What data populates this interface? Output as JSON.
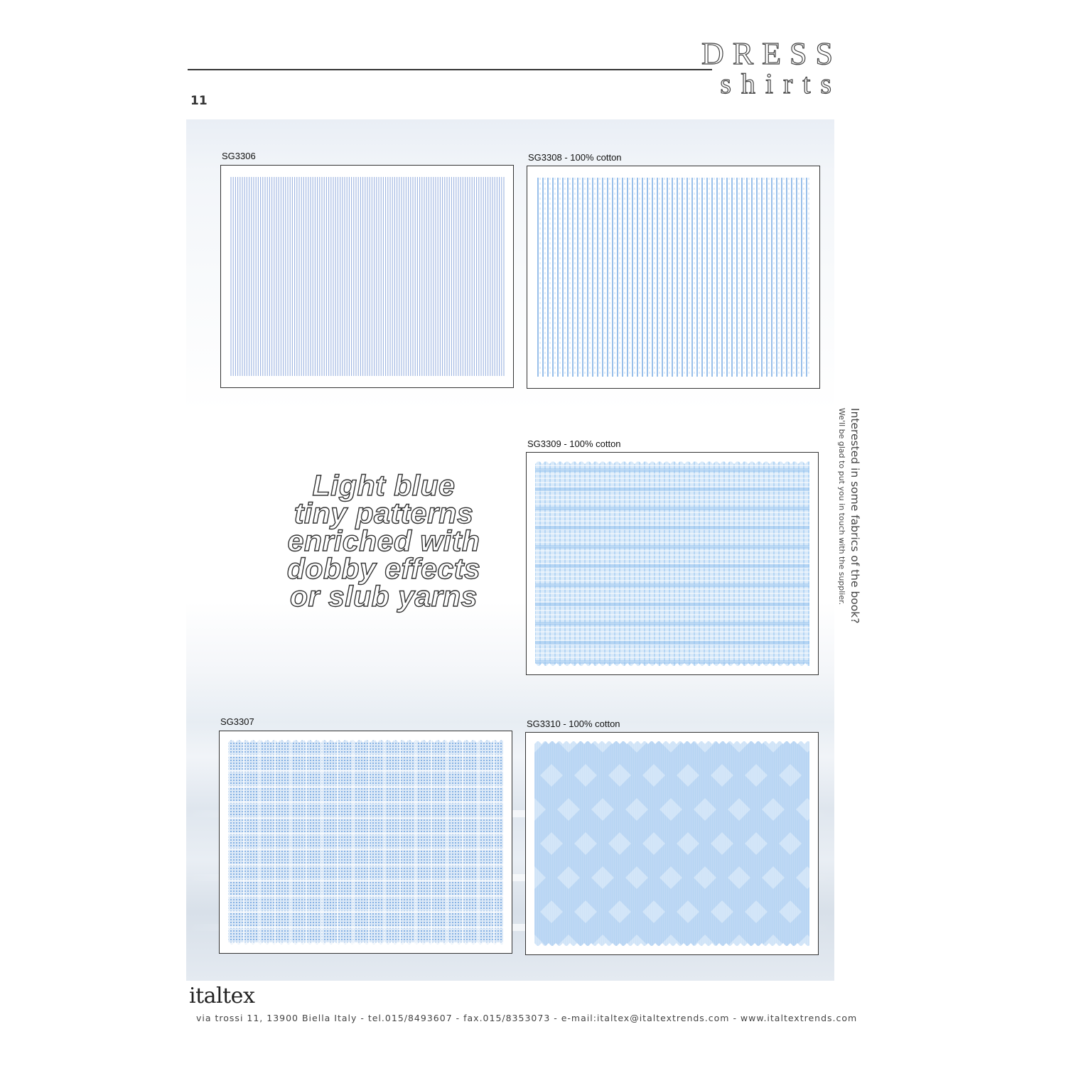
{
  "header": {
    "page_number": "11",
    "title_line1": "DRESS",
    "title_line2": "shirts"
  },
  "swatches": [
    {
      "code": "SG3306",
      "pattern": "fine-stripe",
      "color": "#8aa6dc"
    },
    {
      "code": "SG3308 - 100% cotton",
      "pattern": "dotted-stripe",
      "color": "#7fb0e6"
    },
    {
      "code": "SG3309 - 100% cotton",
      "pattern": "slub-check",
      "color": "#8fc0ee"
    },
    {
      "code": "SG3307",
      "pattern": "dobby-check",
      "color": "#4f8fd8"
    },
    {
      "code": "SG3310 - 100% cotton",
      "pattern": "dobby-diamond",
      "color": "#a9cdf1"
    }
  ],
  "headline": {
    "lines": [
      "Light blue",
      "tiny patterns",
      "enriched with",
      "dobby effects",
      "or slub yarns"
    ]
  },
  "side_note": {
    "question": "Interested in some fabrics of the book?",
    "answer": "We'll be glad to put you in touch with the supplier."
  },
  "footer": {
    "logo": "italtex",
    "contact": "via trossi 11, 13900 Biella Italy - tel.015/8493607 - fax.015/8353073 - e-mail:italtex@italtextrends.com - www.italtextrends.com"
  }
}
